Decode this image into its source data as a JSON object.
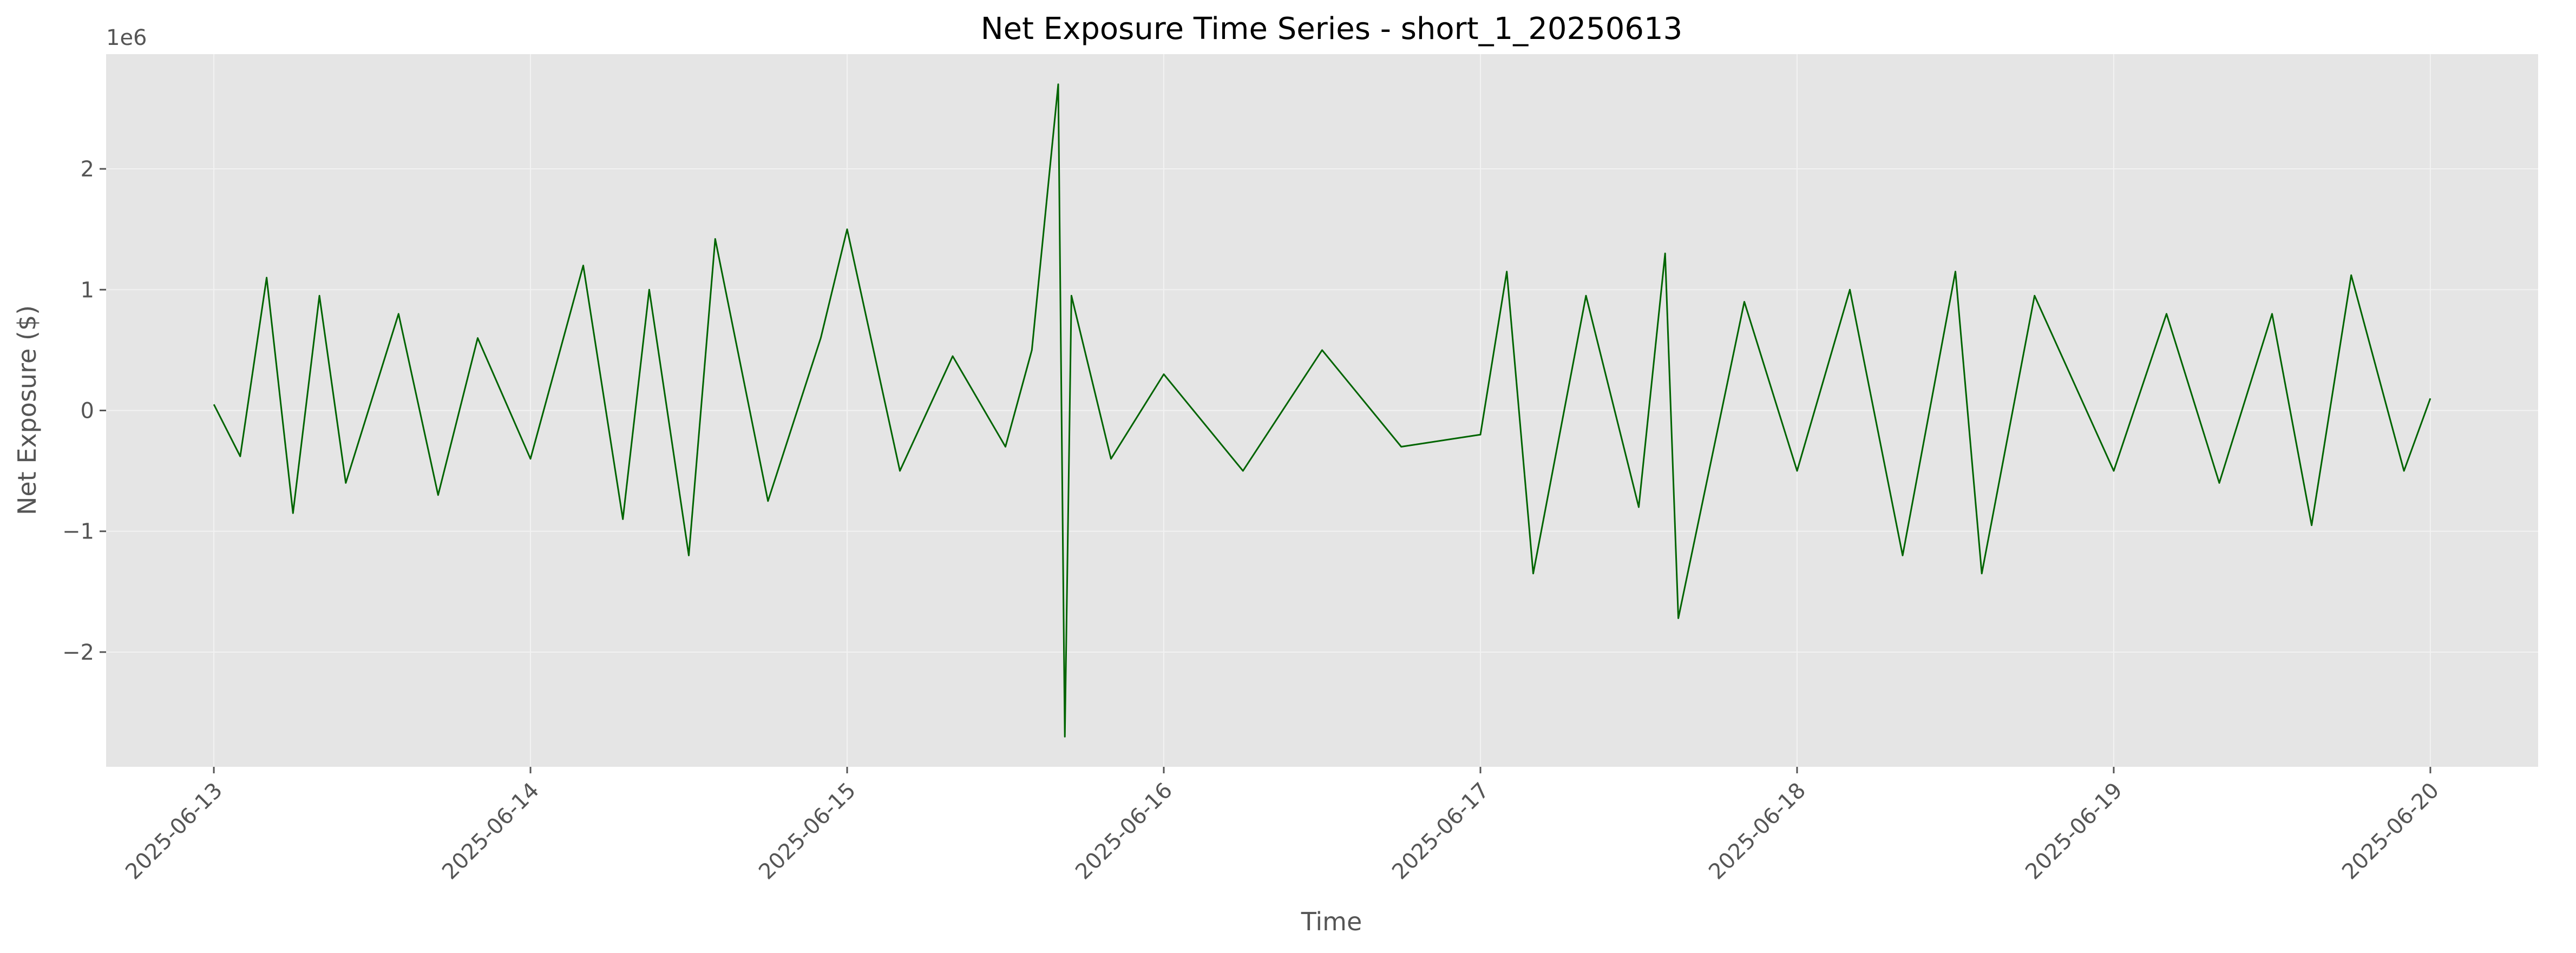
{
  "chart_data": {
    "type": "line",
    "title": "Net Exposure Time Series - short_1_20250613",
    "xlabel": "Time",
    "ylabel": "Net Exposure ($)",
    "y_offset_label": "1e6",
    "x_ticks": [
      "2025-06-13",
      "2025-06-14",
      "2025-06-15",
      "2025-06-16",
      "2025-06-17",
      "2025-06-18",
      "2025-06-19",
      "2025-06-20"
    ],
    "y_ticks": [
      {
        "value": 2,
        "label": "2"
      },
      {
        "value": 1,
        "label": "1"
      },
      {
        "value": 0,
        "label": "0"
      },
      {
        "value": -1,
        "label": "−1"
      },
      {
        "value": -2,
        "label": "−2"
      }
    ],
    "xlim": [
      "2025-06-12T15:50",
      "2025-06-20T08:10"
    ],
    "ylim": [
      -2.95,
      2.95
    ],
    "grid": true,
    "colors": {
      "line": "#006400",
      "plot_background": "#e5e5e5",
      "grid": "#f2f2f2",
      "text": "#555555"
    },
    "series": [
      {
        "x": [
          "2025-06-13T00:00",
          "2025-06-13T02:00",
          "2025-06-13T04:00",
          "2025-06-13T06:00",
          "2025-06-13T08:00",
          "2025-06-13T10:00",
          "2025-06-13T14:00",
          "2025-06-13T17:00",
          "2025-06-13T20:00",
          "2025-06-14T00:00",
          "2025-06-14T04:00",
          "2025-06-14T07:00",
          "2025-06-14T09:00",
          "2025-06-14T12:00",
          "2025-06-14T14:00",
          "2025-06-14T18:00",
          "2025-06-14T22:00",
          "2025-06-15T00:00",
          "2025-06-15T04:00",
          "2025-06-15T08:00",
          "2025-06-15T12:00",
          "2025-06-15T14:00",
          "2025-06-15T16:00",
          "2025-06-15T16:30",
          "2025-06-15T17:00",
          "2025-06-15T20:00",
          "2025-06-16T00:00",
          "2025-06-16T06:00",
          "2025-06-16T12:00",
          "2025-06-16T18:00",
          "2025-06-17T00:00",
          "2025-06-17T02:00",
          "2025-06-17T04:00",
          "2025-06-17T08:00",
          "2025-06-17T12:00",
          "2025-06-17T14:00",
          "2025-06-17T15:00",
          "2025-06-17T20:00",
          "2025-06-18T00:00",
          "2025-06-18T04:00",
          "2025-06-18T08:00",
          "2025-06-18T12:00",
          "2025-06-18T14:00",
          "2025-06-18T18:00",
          "2025-06-19T00:00",
          "2025-06-19T04:00",
          "2025-06-19T08:00",
          "2025-06-19T12:00",
          "2025-06-19T15:00",
          "2025-06-19T18:00",
          "2025-06-19T22:00",
          "2025-06-20T00:00"
        ],
        "y": [
          0.05,
          -0.38,
          1.1,
          -0.85,
          0.95,
          -0.6,
          0.8,
          -0.7,
          0.6,
          -0.4,
          1.2,
          -0.9,
          1.0,
          -1.2,
          1.42,
          -0.75,
          0.6,
          1.5,
          -0.5,
          0.45,
          -0.3,
          0.5,
          2.7,
          -2.7,
          0.95,
          -0.4,
          0.3,
          -0.5,
          0.5,
          -0.3,
          -0.2,
          1.15,
          -1.35,
          0.95,
          -0.8,
          1.3,
          -1.72,
          0.9,
          -0.5,
          1.0,
          -1.2,
          1.15,
          -1.35,
          0.95,
          -0.5,
          0.8,
          -0.6,
          0.8,
          -0.95,
          1.12,
          -0.5,
          0.1
        ]
      }
    ]
  }
}
